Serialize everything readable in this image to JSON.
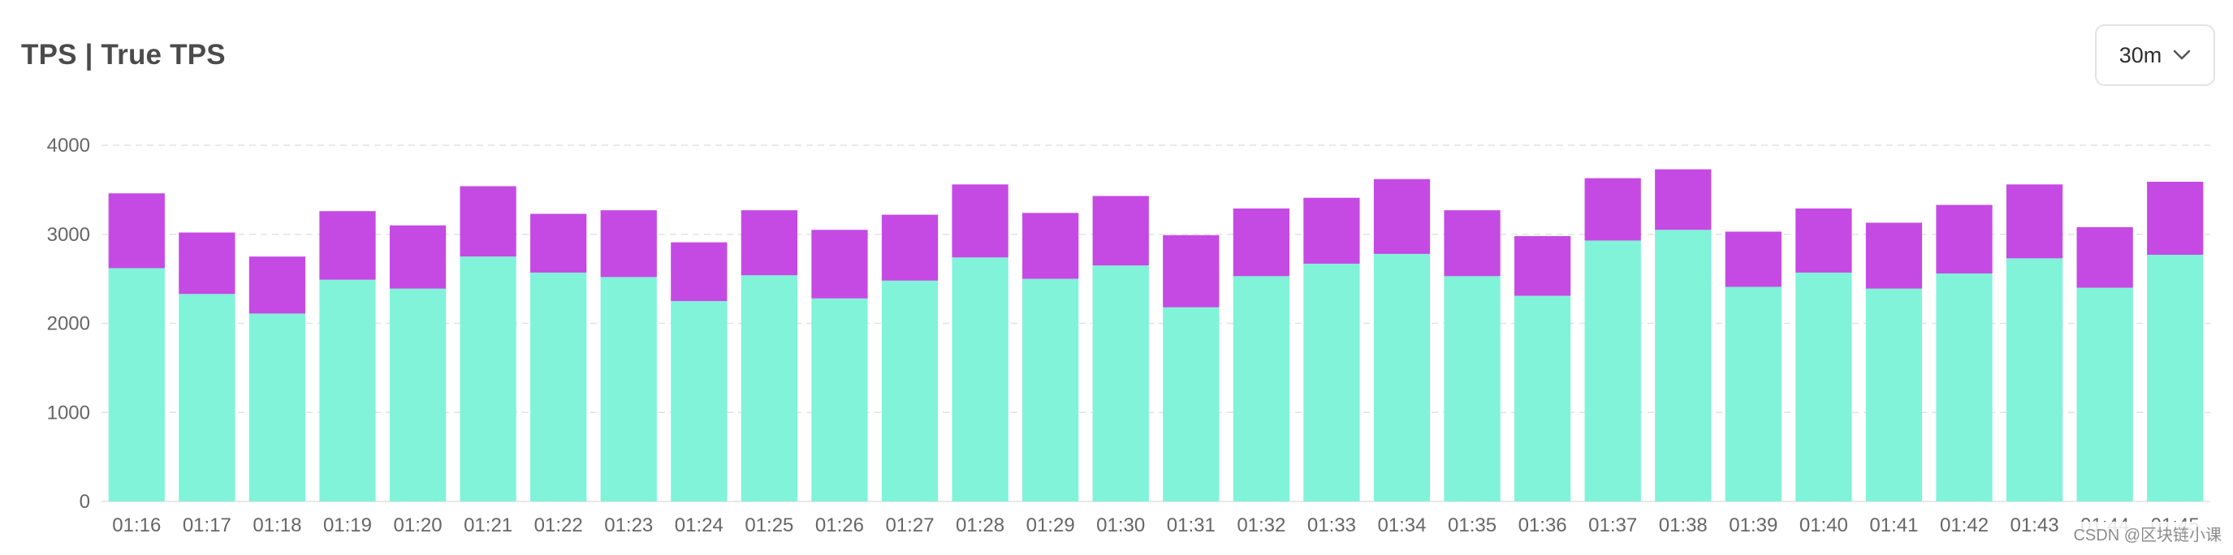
{
  "header": {
    "title": "TPS | True TPS",
    "range_value": "30m"
  },
  "watermark": "CSDN @区块链小课",
  "colors": {
    "bottom": "#80f3d9",
    "top": "#c54ae4",
    "grid": "#e2e2e2",
    "axis": "#e8e8e8"
  },
  "chart_data": {
    "type": "bar",
    "stacked": true,
    "categories": [
      "01:16",
      "01:17",
      "01:18",
      "01:19",
      "01:20",
      "01:21",
      "01:22",
      "01:23",
      "01:24",
      "01:25",
      "01:26",
      "01:27",
      "01:28",
      "01:29",
      "01:30",
      "01:31",
      "01:32",
      "01:33",
      "01:34",
      "01:35",
      "01:36",
      "01:37",
      "01:38",
      "01:39",
      "01:40",
      "01:41",
      "01:42",
      "01:43",
      "01:44",
      "01:45"
    ],
    "series": [
      {
        "values": [
          2620,
          2330,
          2110,
          2490,
          2390,
          2750,
          2570,
          2520,
          2250,
          2540,
          2280,
          2480,
          2740,
          2500,
          2650,
          2180,
          2530,
          2670,
          2780,
          2530,
          2310,
          2930,
          3050,
          2410,
          2570,
          2390,
          2560,
          2730,
          2400,
          2770
        ]
      },
      {
        "values": [
          840,
          690,
          640,
          770,
          710,
          790,
          660,
          750,
          660,
          730,
          770,
          740,
          820,
          740,
          780,
          810,
          760,
          740,
          840,
          740,
          670,
          700,
          680,
          620,
          720,
          740,
          770,
          830,
          680,
          820
        ]
      }
    ],
    "yticks": [
      0,
      1000,
      2000,
      3000,
      4000
    ],
    "ylim": [
      0,
      4000
    ],
    "grid": true,
    "legend": "none"
  }
}
